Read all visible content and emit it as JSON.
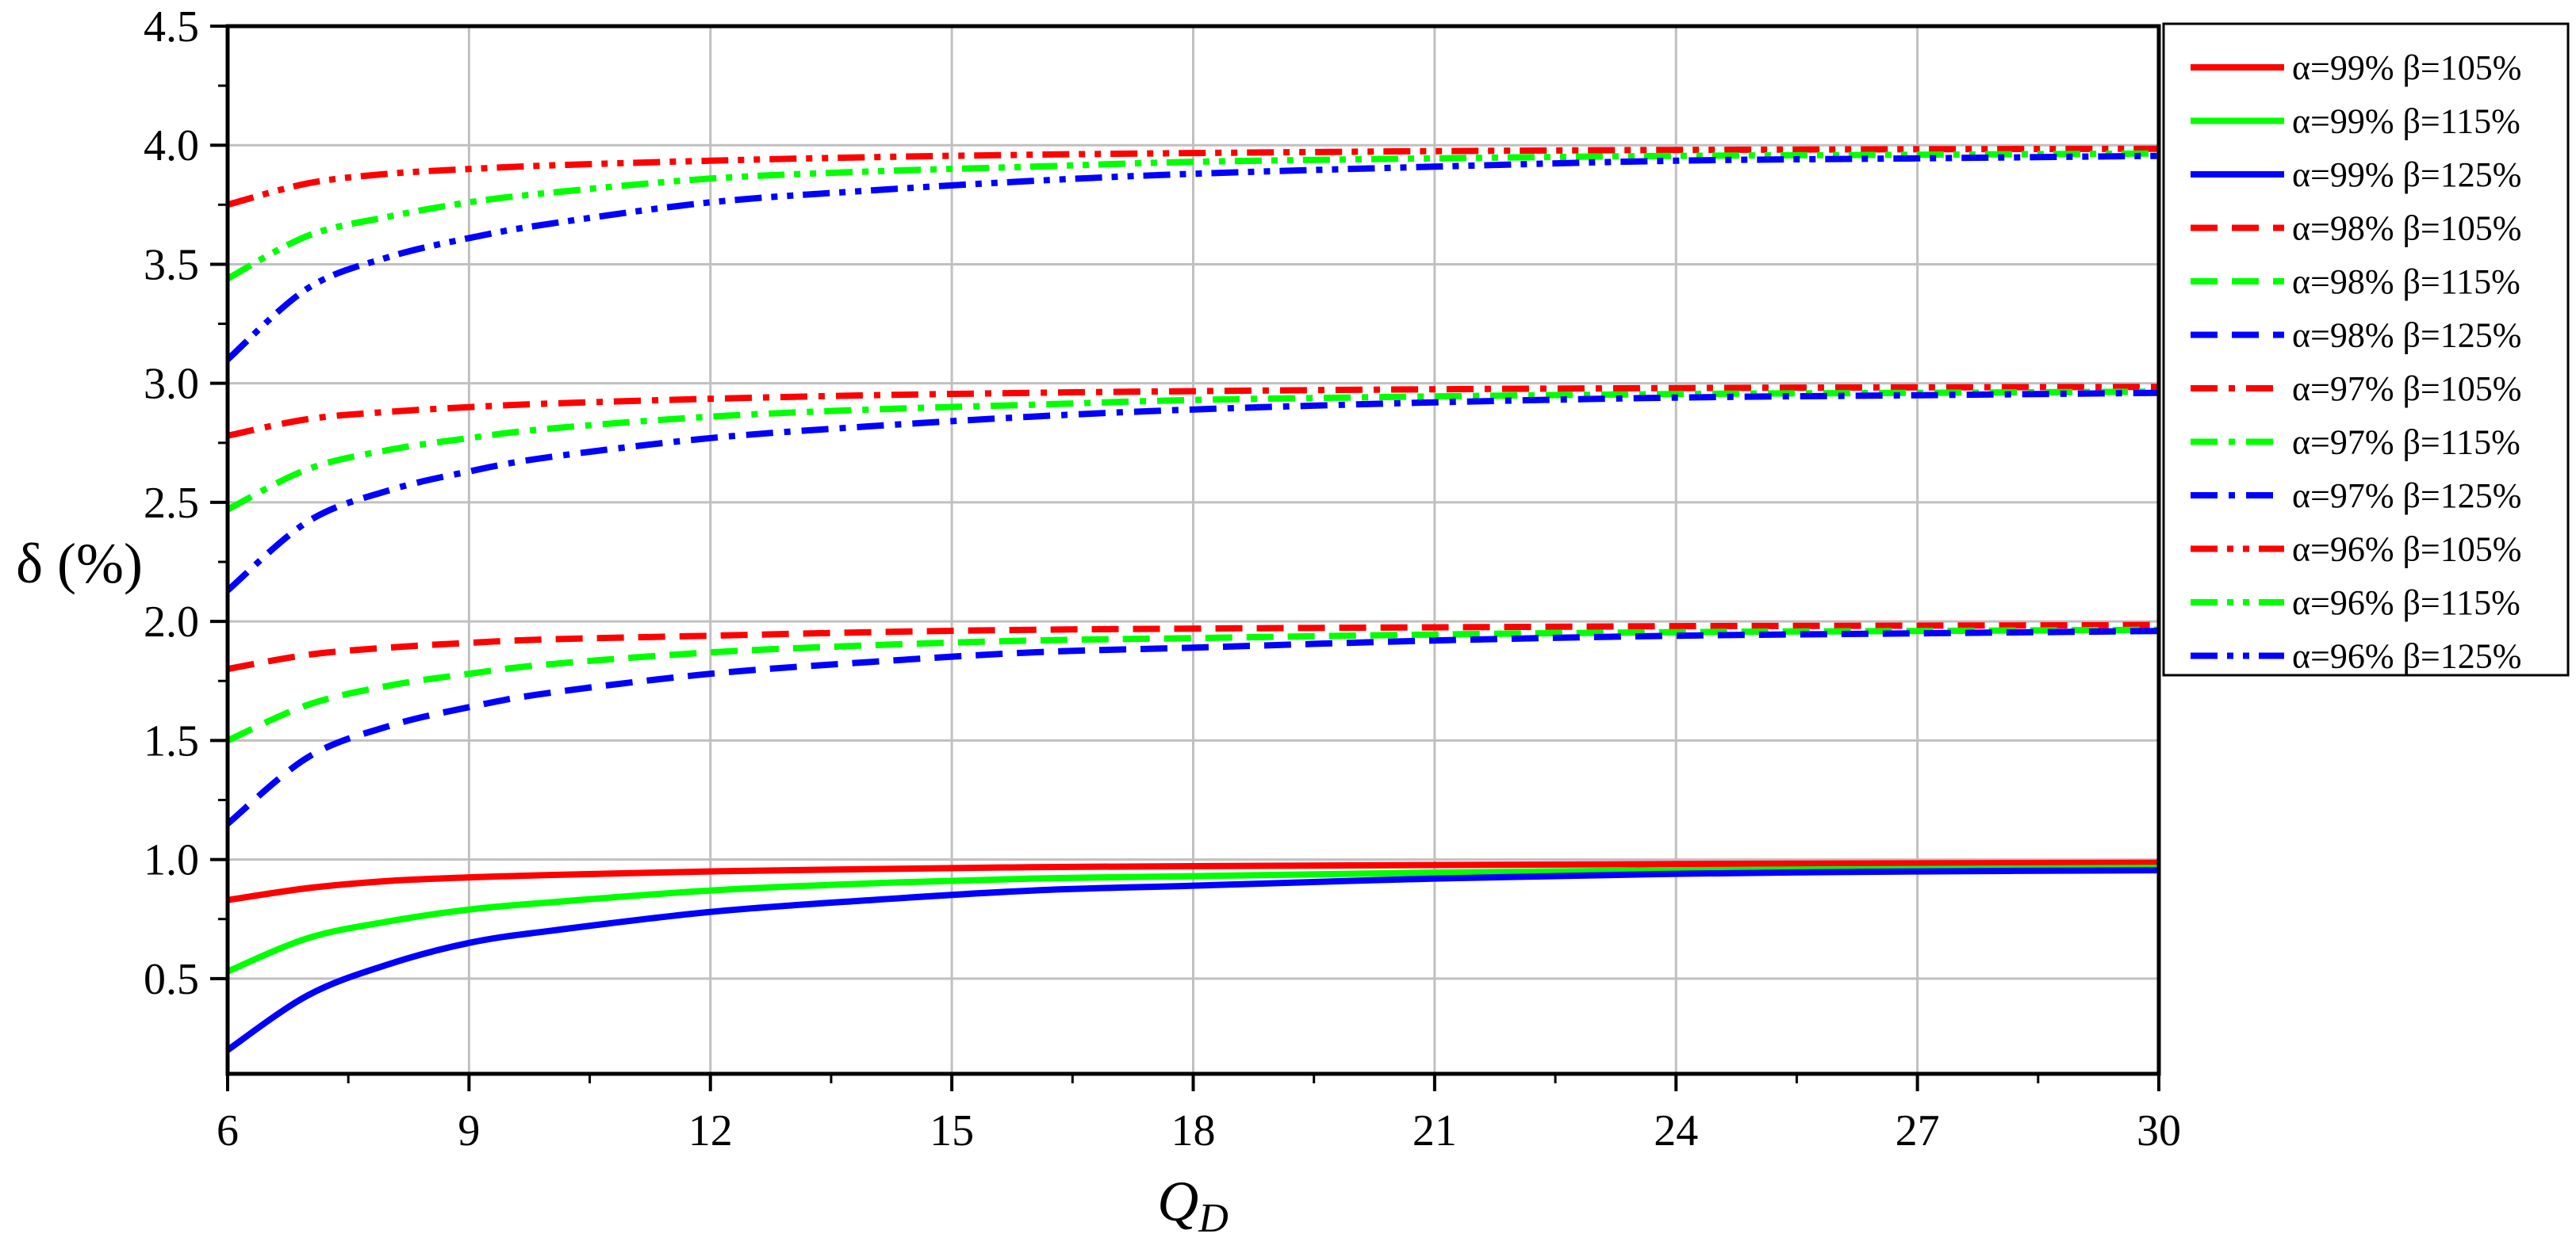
{
  "chart_data": {
    "type": "line",
    "title": "",
    "xlabel": "Q",
    "xlabel_sub": "D",
    "ylabel": "δ (%)",
    "xlim": [
      6,
      30
    ],
    "ylim": [
      0.1,
      4.5
    ],
    "xticks": [
      6,
      9,
      12,
      15,
      18,
      21,
      24,
      27,
      30
    ],
    "yticks": [
      0.5,
      1.0,
      1.5,
      2.0,
      2.5,
      3.0,
      3.5,
      4.0,
      4.5
    ],
    "ytick_labels": [
      "0.5",
      "1.0",
      "1.5",
      "2.0",
      "2.5",
      "3.0",
      "3.5",
      "4.0",
      "4.5"
    ],
    "grid": true,
    "legend_position": "right",
    "x": [
      6,
      7,
      8,
      9,
      10,
      12,
      14,
      16,
      18,
      21,
      24,
      27,
      30
    ],
    "series": [
      {
        "name": "α=99% β=105%",
        "alpha": "α=99%",
        "beta": "β=105%",
        "color": "#ff0000",
        "dash": "solid",
        "values": [
          0.83,
          0.88,
          0.91,
          0.925,
          0.935,
          0.95,
          0.96,
          0.968,
          0.972,
          0.977,
          0.981,
          0.984,
          0.986
        ]
      },
      {
        "name": "α=99% β=115%",
        "alpha": "α=99%",
        "beta": "β=115%",
        "color": "#00ff00",
        "dash": "solid",
        "values": [
          0.53,
          0.67,
          0.74,
          0.79,
          0.82,
          0.87,
          0.9,
          0.92,
          0.93,
          0.945,
          0.955,
          0.96,
          0.965
        ]
      },
      {
        "name": "α=99% β=125%",
        "alpha": "α=99%",
        "beta": "β=125%",
        "color": "#0000ff",
        "dash": "solid",
        "values": [
          0.2,
          0.43,
          0.56,
          0.65,
          0.7,
          0.78,
          0.83,
          0.87,
          0.89,
          0.92,
          0.94,
          0.95,
          0.955
        ]
      },
      {
        "name": "α=98% β=105%",
        "alpha": "α=98%",
        "beta": "β=105%",
        "color": "#ff0000",
        "dash": "dash",
        "values": [
          1.8,
          1.86,
          1.89,
          1.91,
          1.925,
          1.94,
          1.955,
          1.965,
          1.97,
          1.975,
          1.98,
          1.982,
          1.985
        ]
      },
      {
        "name": "α=98% β=115%",
        "alpha": "α=98%",
        "beta": "β=115%",
        "color": "#00ff00",
        "dash": "dash",
        "values": [
          1.5,
          1.65,
          1.73,
          1.78,
          1.82,
          1.87,
          1.9,
          1.92,
          1.93,
          1.945,
          1.955,
          1.96,
          1.965
        ]
      },
      {
        "name": "α=98% β=125%",
        "alpha": "α=98%",
        "beta": "β=125%",
        "color": "#0000ff",
        "dash": "dash",
        "values": [
          1.15,
          1.43,
          1.56,
          1.64,
          1.7,
          1.78,
          1.83,
          1.87,
          1.89,
          1.92,
          1.94,
          1.95,
          1.96
        ]
      },
      {
        "name": "α=97% β=105%",
        "alpha": "α=97%",
        "beta": "β=105%",
        "color": "#ff0000",
        "dash": "dashdot",
        "values": [
          2.78,
          2.85,
          2.88,
          2.9,
          2.915,
          2.935,
          2.95,
          2.96,
          2.967,
          2.975,
          2.98,
          2.983,
          2.985
        ]
      },
      {
        "name": "α=97% β=115%",
        "alpha": "α=97%",
        "beta": "β=115%",
        "color": "#00ff00",
        "dash": "dashdot",
        "values": [
          2.47,
          2.64,
          2.72,
          2.77,
          2.81,
          2.86,
          2.89,
          2.91,
          2.93,
          2.945,
          2.955,
          2.96,
          2.965
        ]
      },
      {
        "name": "α=97% β=125%",
        "alpha": "α=97%",
        "beta": "β=125%",
        "color": "#0000ff",
        "dash": "dashdot",
        "values": [
          2.13,
          2.42,
          2.55,
          2.63,
          2.69,
          2.77,
          2.82,
          2.86,
          2.89,
          2.92,
          2.94,
          2.95,
          2.96
        ]
      },
      {
        "name": "α=96% β=105%",
        "alpha": "α=96%",
        "beta": "β=105%",
        "color": "#ff0000",
        "dash": "dashdotdot",
        "values": [
          3.75,
          3.84,
          3.88,
          3.9,
          3.915,
          3.935,
          3.95,
          3.96,
          3.967,
          3.975,
          3.98,
          3.983,
          3.985
        ]
      },
      {
        "name": "α=96% β=115%",
        "alpha": "α=96%",
        "beta": "β=115%",
        "color": "#00ff00",
        "dash": "dashdotdot",
        "values": [
          3.44,
          3.62,
          3.7,
          3.76,
          3.8,
          3.86,
          3.89,
          3.91,
          3.93,
          3.945,
          3.955,
          3.96,
          3.965
        ]
      },
      {
        "name": "α=96% β=125%",
        "alpha": "α=96%",
        "beta": "β=125%",
        "color": "#0000ff",
        "dash": "dashdotdot",
        "values": [
          3.1,
          3.4,
          3.53,
          3.61,
          3.67,
          3.76,
          3.81,
          3.85,
          3.88,
          3.91,
          3.935,
          3.945,
          3.955
        ]
      }
    ]
  }
}
